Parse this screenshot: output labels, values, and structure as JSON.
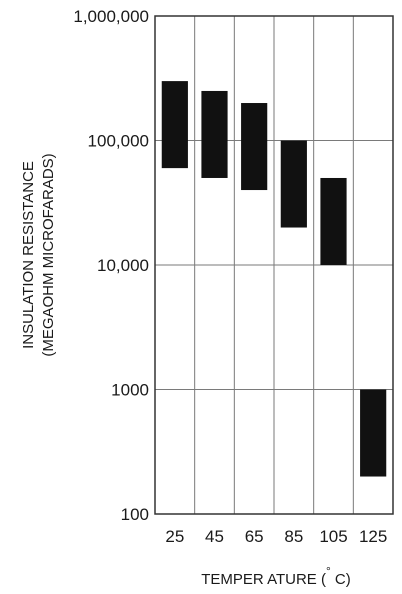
{
  "chart_data": {
    "type": "bar",
    "subtype": "floating-range",
    "categories": [
      "25",
      "45",
      "65",
      "85",
      "105",
      "125"
    ],
    "ranges": [
      {
        "low": 60000,
        "high": 300000
      },
      {
        "low": 50000,
        "high": 250000
      },
      {
        "low": 40000,
        "high": 200000
      },
      {
        "low": 20000,
        "high": 100000
      },
      {
        "low": 10000,
        "high": 50000
      },
      {
        "low": 200,
        "high": 1000
      }
    ],
    "yscale": "log",
    "ylim": [
      100,
      1000000
    ],
    "ytick_values": [
      100,
      1000,
      10000,
      100000,
      1000000
    ],
    "ytick_labels": [
      "100",
      "1000",
      "10,000",
      "100,000",
      "1,000,000"
    ],
    "ylabel_line1": "INSULATION RESISTANCE",
    "ylabel_line2": "(MEGAOHM MICROFARADS)",
    "xlabel_prefix": "TEMPER ATURE (",
    "xlabel_degree": "°",
    "xlabel_suffix": " C)",
    "grid": true,
    "colors": {
      "bar": "#111111",
      "grid": "#7a7a7a",
      "frame": "#333333"
    }
  }
}
